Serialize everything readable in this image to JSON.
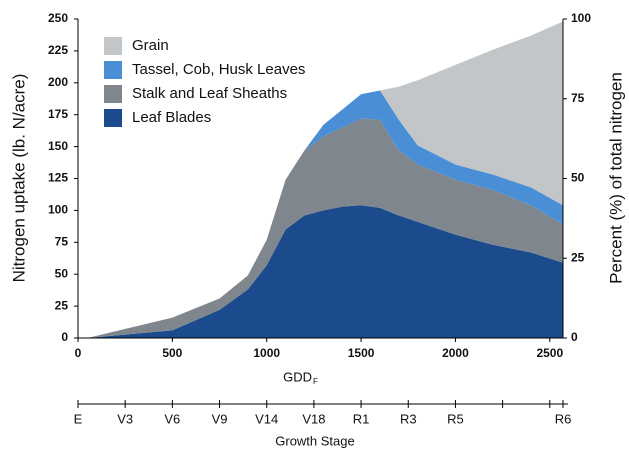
{
  "chart_data": {
    "type": "stacked_area",
    "x_label": "GDD",
    "x_label_sub": "F",
    "y_label": "Nitrogen uptake (lb. N/acre)",
    "y2_label": "Percent (%) of total nitrogen",
    "stage_label": "Growth Stage",
    "x": [
      50,
      500,
      750,
      900,
      1000,
      1100,
      1200,
      1300,
      1400,
      1500,
      1600,
      1700,
      1800,
      2000,
      2200,
      2400,
      2570
    ],
    "series": [
      {
        "name": "Leaf Blades",
        "color": "#1b4b8c",
        "values": [
          0,
          6,
          22,
          38,
          57,
          85,
          96,
          100,
          103,
          104,
          102,
          96,
          91,
          81,
          73,
          67,
          59
        ]
      },
      {
        "name": "Stalk and Leaf Sheaths",
        "color": "#7f868e",
        "values": [
          0,
          10,
          9,
          11,
          20,
          39,
          51,
          58,
          62,
          68,
          69,
          51,
          45,
          43,
          43,
          37,
          30
        ]
      },
      {
        "name": "Tassel, Cob, Husk Leaves",
        "color": "#4a8fd6",
        "values": [
          0,
          0,
          0,
          0,
          0,
          0,
          0,
          9,
          14,
          19,
          23,
          24,
          15,
          12,
          12,
          14,
          15
        ]
      },
      {
        "name": "Grain",
        "color": "#c3c6c8",
        "values": [
          0,
          0,
          0,
          0,
          0,
          0,
          0,
          0,
          0,
          0,
          0,
          26,
          51,
          78,
          98,
          119,
          144
        ]
      }
    ],
    "xlim": [
      0,
      2570
    ],
    "xticks": [
      0,
      500,
      1000,
      1500,
      2000,
      2500
    ],
    "ylim": [
      0,
      250
    ],
    "yticks": [
      0,
      25,
      50,
      75,
      100,
      125,
      150,
      175,
      200,
      225,
      250
    ],
    "y2lim": [
      0,
      100
    ],
    "y2ticks": [
      0,
      25,
      50,
      75,
      100
    ],
    "stage_ticks": [
      {
        "value": 0,
        "label": "E"
      },
      {
        "value": 250,
        "label": "V3"
      },
      {
        "value": 500,
        "label": "V6"
      },
      {
        "value": 750,
        "label": "V9"
      },
      {
        "value": 1000,
        "label": "V14"
      },
      {
        "value": 1250,
        "label": "V18"
      },
      {
        "value": 1500,
        "label": "R1"
      },
      {
        "value": 1750,
        "label": "R3"
      },
      {
        "value": 2000,
        "label": "R5"
      },
      {
        "value": 2250,
        "label": null
      },
      {
        "value": 2500,
        "label": null
      },
      {
        "value": 2570,
        "label": "R6"
      }
    ],
    "legend": "top-left"
  }
}
